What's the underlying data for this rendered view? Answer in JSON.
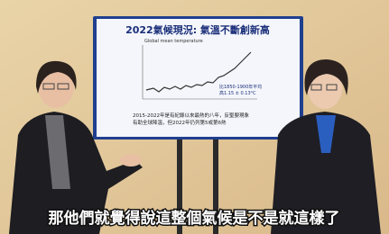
{
  "screen": {
    "title": "2022氣候現況: 氣溫不斷創新高",
    "chart_caption": "Global mean temperature",
    "annotation": [
      "比1850-1900年平均",
      "高1.15 ± 0.13°C"
    ],
    "footnote": [
      "2015-2022年是有紀錄以來最熱的八年，反聖嬰現象",
      "有助全球降溫，但2022年仍列第5或第6熱"
    ]
  },
  "subtitle": "那他們就覺得說這整個氣候是不是就這樣了"
}
